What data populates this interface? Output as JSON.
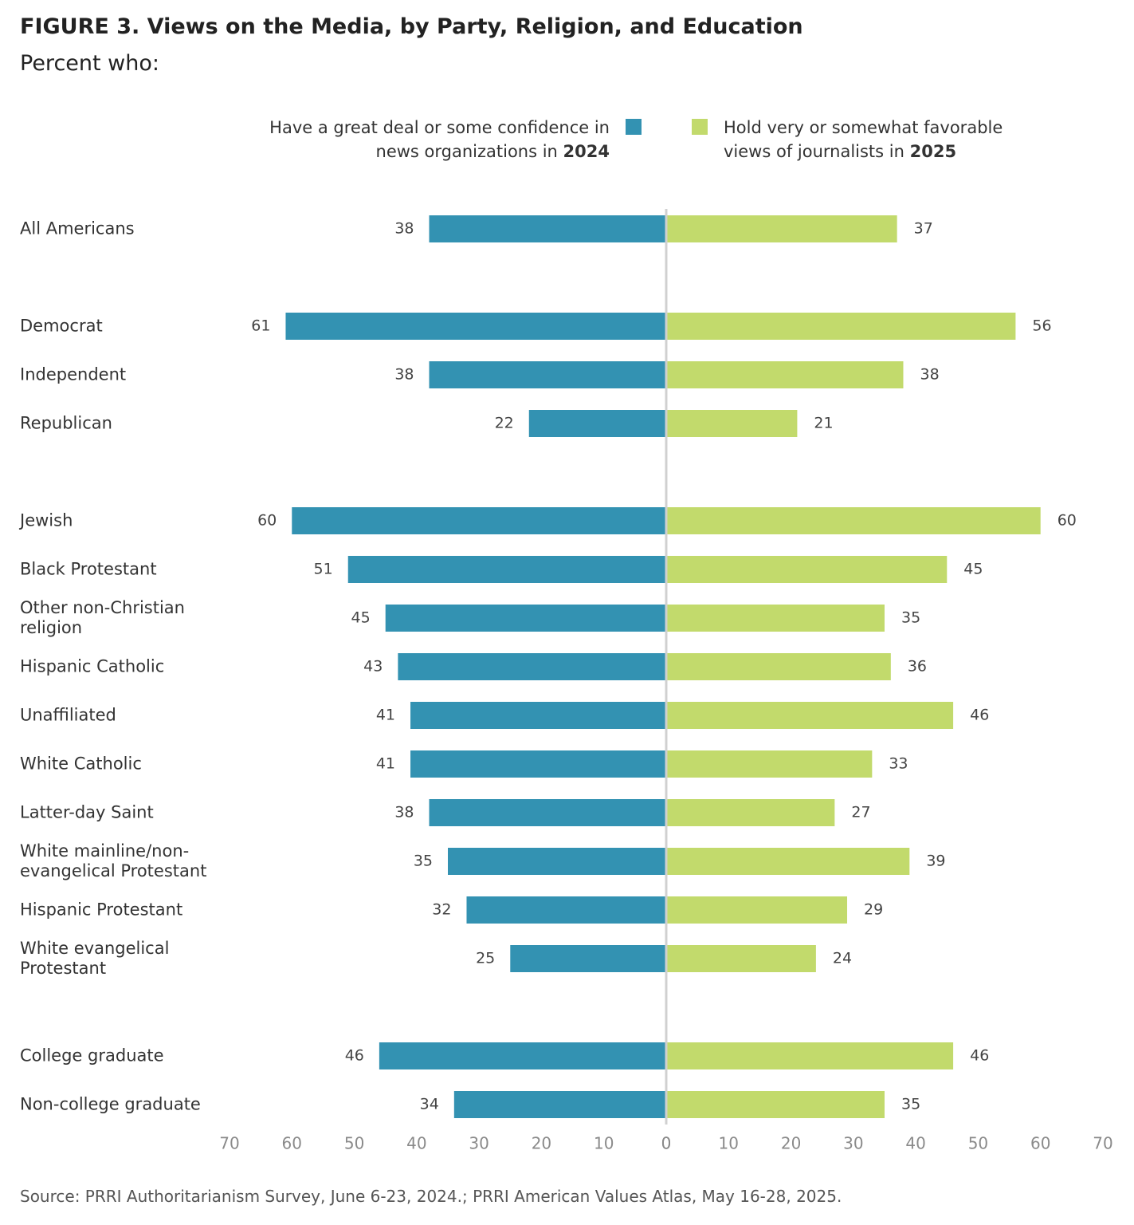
{
  "chart_data": {
    "type": "bar",
    "orientation": "diverging",
    "title": "FIGURE 3. Views on the Media, by Party, Religion, and Education",
    "subtitle": "Percent who:",
    "source": "Source: PRRI Authoritarianism Survey, June 6-23, 2024.; PRRI American Values Atlas, May 16-28, 2025.",
    "categories": [
      "All Americans",
      null,
      "Democrat",
      "Independent",
      "Republican",
      null,
      "Jewish",
      "Black Protestant",
      "Other non-Christian religion",
      "Hispanic Catholic",
      "Unaffiliated",
      "White Catholic",
      "Latter-day Saint",
      "White mainline/non-evangelical Protestant",
      "Hispanic Protestant",
      "White evangelical Protestant",
      null,
      "College graduate",
      "Non-college graduate"
    ],
    "series": [
      {
        "name": "Have a great deal or some confidence in news organizations in 2024",
        "color": "#3392b2",
        "values": [
          38,
          null,
          61,
          38,
          22,
          null,
          60,
          51,
          45,
          43,
          41,
          41,
          38,
          35,
          32,
          25,
          null,
          46,
          34
        ]
      },
      {
        "name": "Hold very or somewhat favorable views of journalists in 2025",
        "color": "#c2da6c",
        "values": [
          37,
          null,
          56,
          38,
          21,
          null,
          60,
          45,
          35,
          36,
          46,
          33,
          27,
          39,
          29,
          24,
          null,
          46,
          35
        ]
      }
    ],
    "xlim": [
      0,
      70
    ],
    "xticks": [
      0,
      10,
      20,
      30,
      40,
      50,
      60,
      70
    ]
  }
}
